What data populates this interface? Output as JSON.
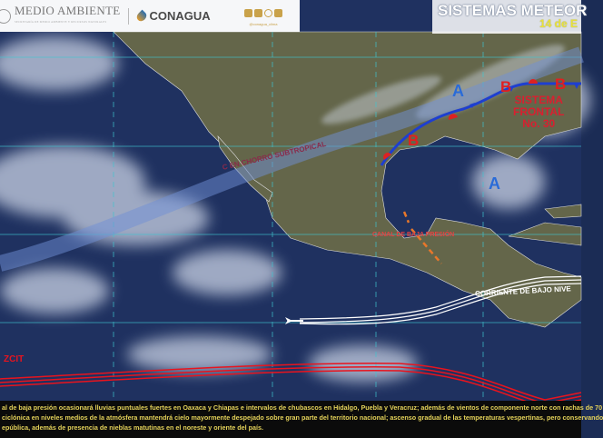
{
  "header": {
    "agency": "MEDIO AMBIENTE",
    "agency_sub": "SECRETARÍA DE MEDIO AMBIENTE Y RECURSOS NATURALES",
    "commission": "CONAGUA",
    "social_handle": "@conagua_clima",
    "social_icons": [
      "facebook-icon",
      "twitter-icon",
      "instagram-icon",
      "youtube-icon"
    ]
  },
  "title": {
    "text": "SISTEMAS METEOR",
    "date": "14 de E"
  },
  "map_labels": {
    "subtropical_jet": "C EN CHORRO SUBTROPICAL",
    "low_trough": "CANAL DE BAJA PRESIÓN",
    "frontal_system": [
      "SISTEMA",
      "FRONTAL",
      "No. 30"
    ],
    "low_level_jet": "CORRIENTE DE BAJO NIVE",
    "itcz": "ZCIT",
    "high_symbol": "A",
    "low_symbol": "B"
  },
  "colors": {
    "high": "#2a6bd8",
    "low": "#e02020",
    "cold_front": "#1e3fd0",
    "itcz": "#e8141e",
    "bulletin_text": "#e4d25a"
  },
  "bulletin": [
    "al de baja presión ocasionará lluvias puntuales fuertes en Oaxaca y Chiapas e intervalos de chubascos en Hidalgo, Puebla y Veracruz; además de vientos de componente norte con rachas de 70",
    "ciclónica en niveles medios de la atmósfera mantendrá cielo mayormente despejado sobre gran parte del territorio nacional; ascenso gradual de las temperaturas vespertinas, pero conservando",
    "epública, además de presencia de nieblas matutinas en el noreste y oriente del país."
  ]
}
